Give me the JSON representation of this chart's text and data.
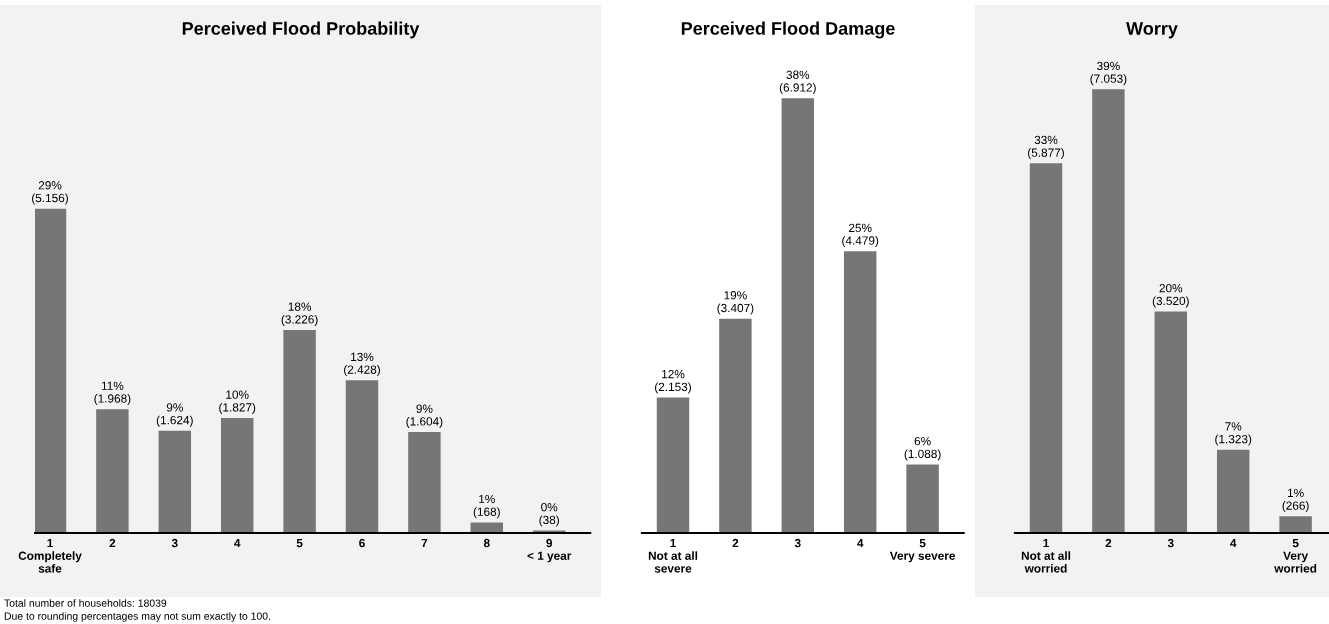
{
  "chart_data": [
    {
      "type": "bar",
      "title": "Perceived Flood Probability",
      "categories": [
        "1\nCompletely\nsafe",
        "2",
        "3",
        "4",
        "5",
        "6",
        "7",
        "8",
        "9\n< 1 year"
      ],
      "values": [
        5156,
        1968,
        1624,
        1827,
        3226,
        2428,
        1604,
        168,
        38
      ],
      "color": "#767676",
      "value_labels": [
        "29%\n(5.156)",
        "11%\n(1.968)",
        "9%\n(1.624)",
        "10%\n(1.827)",
        "18%\n(3.226)",
        "13%\n(2.428)",
        "9%\n(1.604)",
        "1%\n(168)",
        "0%\n(38)"
      ],
      "tick_labels": "x",
      "grid": false,
      "legend": false,
      "annotations": [
        "Total number of households: 18039",
        "Due to rounding percentages may not sum exactly to 100."
      ]
    },
    {
      "type": "bar",
      "title": "Perceived Flood Damage",
      "categories": [
        "1\nNot at all\nsevere",
        "2",
        "3",
        "4",
        "5\nVery severe"
      ],
      "values": [
        2153,
        3407,
        6912,
        4479,
        1088
      ],
      "color": "#767676",
      "value_labels": [
        "12%\n(2.153)",
        "19%\n(3.407)",
        "38%\n(6.912)",
        "25%\n(4.479)",
        "6%\n(1.088)"
      ],
      "tick_labels": "x",
      "grid": false,
      "legend": false
    },
    {
      "type": "bar",
      "title": "Worry",
      "categories": [
        "1\nNot at all\nworried",
        "2",
        "3",
        "4",
        "5\nVery\nworried"
      ],
      "values": [
        5877,
        7053,
        3520,
        1323,
        266
      ],
      "color": "#767676",
      "value_labels": [
        "33%\n(5.877)",
        "39%\n(7.053)",
        "20%\n(3.520)",
        "7%\n(1.323)",
        "1%\n(266)"
      ],
      "tick_labels": "x",
      "grid": false,
      "legend": false
    }
  ]
}
